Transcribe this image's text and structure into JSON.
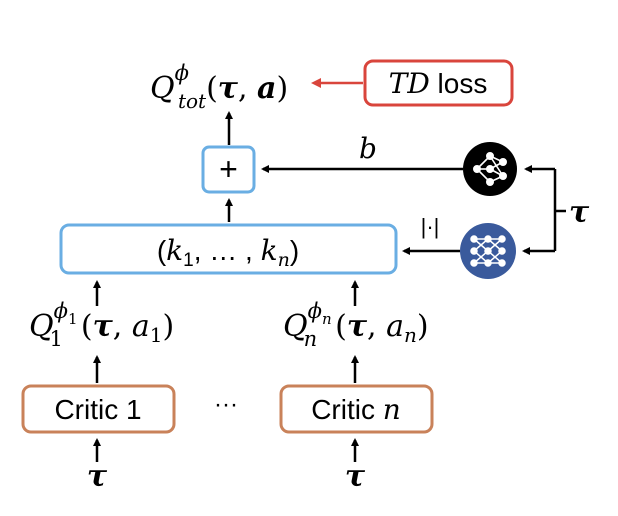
{
  "colors": {
    "red": "#d9453c",
    "blue": "#6aaee3",
    "orange": "#c9825a",
    "black": "#000000",
    "hyper_blue": "#3a5a9c"
  },
  "output": {
    "Q": "Q",
    "superscript": "ϕ",
    "subscript": "tot",
    "args_open": "(",
    "tau": "τ",
    "comma": ", ",
    "a": "a",
    "args_close": ")"
  },
  "td_loss": {
    "td": "TD",
    "loss": " loss"
  },
  "plus_label": "+",
  "bias_label": "b",
  "weights": {
    "open": "(",
    "k": "k",
    "sub1": "1",
    "mid": ", … , ",
    "subn": "n",
    "close": ")"
  },
  "abs_label": "|·|",
  "tau_input": "τ",
  "left_q": {
    "Q": "Q",
    "sub": "1",
    "sup_phi": "ϕ",
    "sup_sub": "1",
    "open": "(",
    "tau": "τ",
    "comma": ", ",
    "a": "a",
    "a_sub": "1",
    "close": ")"
  },
  "right_q": {
    "Q": "Q",
    "sub": "n",
    "sup_phi": "ϕ",
    "sup_sub": "n",
    "open": "(",
    "tau": "τ",
    "comma": ", ",
    "a": "a",
    "a_sub": "n",
    "close": ")"
  },
  "critic_1": {
    "label": "Critic ",
    "index": "1"
  },
  "critic_n": {
    "label": "Critic ",
    "index": "n"
  },
  "ellipsis": "···",
  "critic_1_input": "τ",
  "critic_n_input": "τ"
}
